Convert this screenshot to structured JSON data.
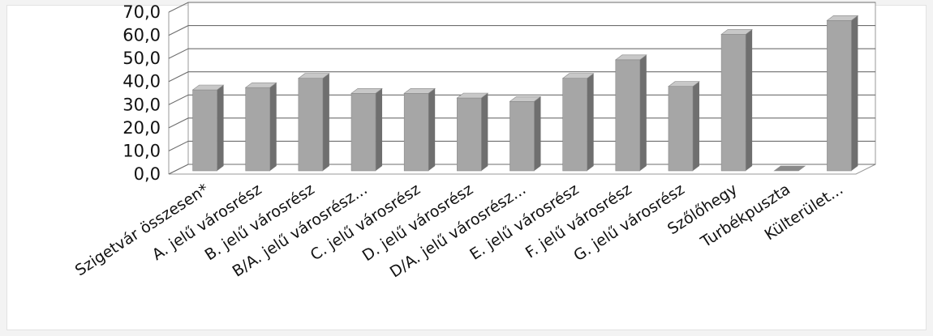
{
  "chart_data": {
    "type": "bar",
    "title": "",
    "xlabel": "",
    "ylabel": "",
    "categories": [
      "Szigetvár összesen*",
      "A. jelű városrész",
      "B. jelű városrész",
      "B/A. jelű városrész...",
      "C. jelű városrész",
      "D. jelű városrész",
      "D/A. jelű városrész...",
      "E. jelű városrész",
      "F. jelű városrész",
      "G. jelű városrész",
      "Szőlőhegy",
      "Turbékpuszta",
      "Külterület..."
    ],
    "values": [
      35.0,
      36.0,
      40.0,
      33.5,
      33.5,
      31.5,
      30.0,
      40.0,
      48.0,
      36.5,
      59.0,
      0.0,
      65.0
    ],
    "ylim": [
      0,
      70
    ],
    "yticks": [
      "0,0",
      "10,0",
      "20,0",
      "30,0",
      "40,0",
      "50,0",
      "60,0",
      "70,0"
    ],
    "grid": true,
    "legend": "none",
    "bar_color": "#a6a6a6",
    "bar_side_color": "#6f6f6f",
    "bar_top_color": "#c8c8c8"
  }
}
